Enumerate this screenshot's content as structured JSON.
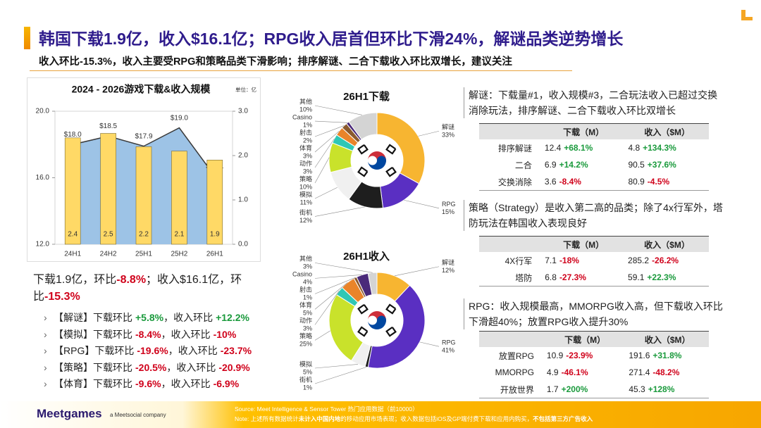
{
  "header": {
    "title": "韩国下载1.9亿，收入$16.1亿；RPG收入居首但环比下滑24%，解谜品类逆势增长",
    "subtitle": "收入环比-15.3%，收入主要受RPG和策略品类下滑影响；排序解谜、二合下载收入环比双增长，建议关注"
  },
  "chart_data": [
    {
      "type": "combo",
      "title": "2024 - 2026游戏下载&收入规模",
      "unit": "单位：亿",
      "categories": [
        "24H1",
        "24H2",
        "25H1",
        "25H2",
        "26H1"
      ],
      "series": [
        {
          "type": "area",
          "color": "#9dc3e6",
          "line_color": "#3a3a3a",
          "values": [
            18.0,
            18.5,
            17.9,
            19.0,
            16.1
          ],
          "value_labels": [
            "$18.0",
            "$18.5",
            "$17.9",
            "$19.0",
            "$16.1"
          ]
        },
        {
          "type": "bar",
          "color": "#ffd966",
          "axis": "y2",
          "values": [
            2.4,
            2.5,
            2.2,
            2.1,
            1.9
          ]
        }
      ],
      "ylim": [
        12,
        20
      ],
      "yticks": [
        {
          "value": 12,
          "label": "12.0"
        },
        {
          "value": 16,
          "label": "16.0"
        },
        {
          "value": 20,
          "label": "20.0"
        }
      ],
      "y2lim": [
        0,
        3
      ],
      "y2ticks": [
        {
          "value": 0,
          "label": "0.0"
        },
        {
          "value": 1,
          "label": "1.0"
        },
        {
          "value": 2,
          "label": "2.0"
        },
        {
          "value": 3,
          "label": "3.0"
        }
      ]
    },
    {
      "type": "pie",
      "donut": true,
      "title": "26H1下载",
      "categories": [
        "解谜",
        "RPG",
        "街机",
        "模拟",
        "策略",
        "动作",
        "体育",
        "射击",
        "Casino",
        "其他"
      ],
      "values": [
        33,
        15,
        12,
        11,
        10,
        3,
        3,
        2,
        1,
        10
      ],
      "value_labels": [
        "33%",
        "15%",
        "12%",
        "11%",
        "10%",
        "3%",
        "3%",
        "2%",
        "1%",
        "10%"
      ],
      "colors": [
        "#f7b531",
        "#5a2fc2",
        "#1e1e1e",
        "#f0f0f0",
        "#c9e22b",
        "#2fc7b5",
        "#e9842a",
        "#8a5a2e",
        "#4a2a7a",
        "#d4d4d4"
      ]
    },
    {
      "type": "pie",
      "donut": true,
      "title": "26H1收入",
      "categories": [
        "解谜",
        "RPG",
        "街机",
        "模拟",
        "策略",
        "动作",
        "体育",
        "射击",
        "Casino",
        "其他"
      ],
      "values": [
        12,
        41,
        1,
        5,
        25,
        3,
        5,
        1,
        4,
        3
      ],
      "value_labels": [
        "12%",
        "41%",
        "1%",
        "5%",
        "25%",
        "3%",
        "5%",
        "1%",
        "4%",
        "3%"
      ],
      "colors": [
        "#f7b531",
        "#5a2fc2",
        "#1e1e1e",
        "#f0f0f0",
        "#c9e22b",
        "#2fc7b5",
        "#e9842a",
        "#8a5a2e",
        "#4a2a7a",
        "#d4d4d4"
      ]
    }
  ],
  "summary": [
    "下载1.9亿，环比",
    "-8.8%",
    "；收入$16.1亿，环比",
    "-15.3%"
  ],
  "bullets": [
    {
      "tag": "【解谜】",
      "download_label": "下载环比",
      "download": "+5.8%",
      "revenue_label": "，收入环比",
      "revenue": "+12.2%"
    },
    {
      "tag": "【模拟】",
      "download_label": "下载环比",
      "download": "-8.4%",
      "revenue_label": "，收入环比",
      "revenue": "-10%"
    },
    {
      "tag": "【RPG】",
      "download_label": "下载环比",
      "download": "-19.6%",
      "revenue_label": "，收入环比",
      "revenue": "-23.7%"
    },
    {
      "tag": "【策略】",
      "download_label": "下载环比",
      "download": "-20.5%",
      "revenue_label": "，收入环比",
      "revenue": "-20.9%"
    },
    {
      "tag": "【体育】",
      "download_label": "下载环比",
      "download": "-9.6%",
      "revenue_label": "，收入环比",
      "revenue": "-6.9%"
    }
  ],
  "panels": [
    {
      "text": "解谜：下载量#1，收入规模#3，二合玩法收入已超过交换消除玩法，排序解谜、二合下载收入环比双增长",
      "headers": [
        "下载（M）",
        "收入（$M）"
      ],
      "rows": [
        [
          "排序解谜",
          "12.4",
          "+68.1%",
          "4.8",
          "+134.3%"
        ],
        [
          "二合",
          "6.9",
          "+14.2%",
          "90.5",
          "+37.6%"
        ],
        [
          "交换消除",
          "3.6",
          "-8.4%",
          "80.9",
          "-4.5%"
        ]
      ]
    },
    {
      "text": "策略（Strategy）是收入第二高的品类；除了4x行军外，塔防玩法在韩国收入表现良好",
      "headers": [
        "下载（M）",
        "收入（$M）"
      ],
      "rows": [
        [
          "4X行军",
          "7.1",
          "-18%",
          "285.2",
          "-26.2%"
        ],
        [
          "塔防",
          "6.8",
          "-27.3%",
          "59.1",
          "+22.3%"
        ]
      ]
    },
    {
      "text": "RPG：收入规模最高，MMORPG收入高，但下载收入环比下滑超40%；放置RPG收入提升30%",
      "headers": [
        "下载（M）",
        "收入（$M）"
      ],
      "rows": [
        [
          "放置RPG",
          "10.9",
          "-23.9%",
          "191.6",
          "+31.8%"
        ],
        [
          "MMORPG",
          "4.9",
          "-46.1%",
          "271.4",
          "-48.2%"
        ],
        [
          "开放世界",
          "1.7",
          "+200%",
          "45.3",
          "+128%"
        ]
      ]
    }
  ],
  "footer": {
    "brand": "Meetgames",
    "tagline": "a Meetsocial company",
    "source": "Source: Meet Intelligence & Sensor Tower 热门应用数据（前10000）",
    "note": [
      "Note: 上述所有数据统计",
      "未计入中国内地",
      "的移动应用市场表现；收入数据包括iOS及GP端付费下载和应用内购买，",
      "不包括第三方广告收入"
    ]
  }
}
